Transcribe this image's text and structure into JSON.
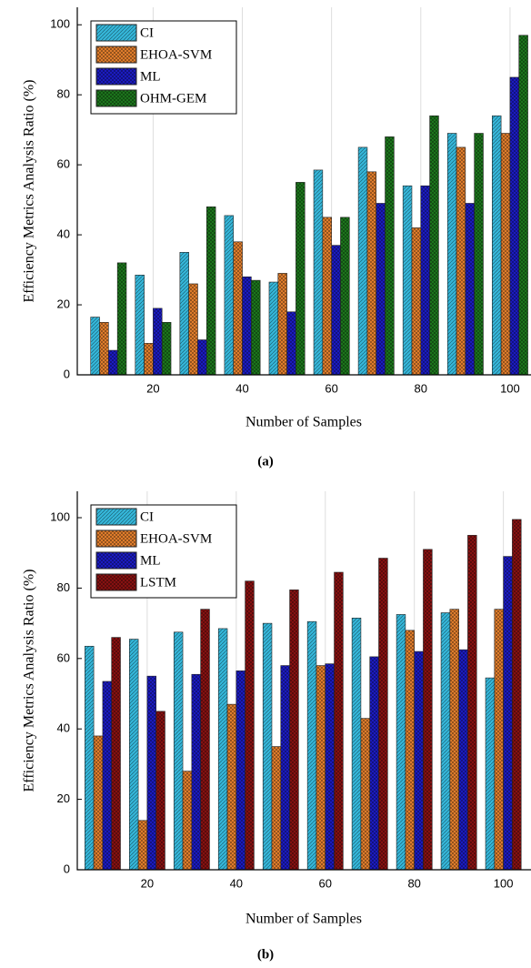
{
  "chart_data": [
    {
      "type": "bar",
      "caption": "(a)",
      "x_label": "Number of Samples",
      "y_label": "Efficiency Metrics Analysis Ratio (%)",
      "x": [
        10,
        20,
        30,
        40,
        50,
        60,
        70,
        80,
        90,
        100
      ],
      "xlim": [
        3,
        104.5
      ],
      "xticks": [
        20,
        40,
        60,
        80,
        100
      ],
      "ylim": [
        0,
        105
      ],
      "yticks": [
        0,
        20,
        40,
        60,
        80,
        100
      ],
      "grid": true,
      "legend": "upper left",
      "series": [
        {
          "name": "CI",
          "color": "#35b6d9",
          "values": [
            16.5,
            28.5,
            35,
            45.5,
            26.5,
            58.5,
            65,
            54,
            69,
            74
          ]
        },
        {
          "name": "EHOA-SVM",
          "color": "#e8822e",
          "values": [
            15,
            9,
            26,
            38,
            29,
            45,
            58,
            42,
            65,
            69
          ]
        },
        {
          "name": "ML",
          "color": "#1c1cc8",
          "values": [
            7,
            19,
            10,
            28,
            18,
            37,
            49,
            54,
            49,
            85
          ]
        },
        {
          "name": "OHM-GEM",
          "color": "#1d7a1d",
          "values": [
            32,
            15,
            48,
            27,
            55,
            45,
            68,
            74,
            69,
            97
          ]
        }
      ]
    },
    {
      "type": "bar",
      "caption": "(b)",
      "x_label": "Number of Samples",
      "y_label": "Efficiency Metrics Analysis Ratio (%)",
      "x": [
        10,
        20,
        30,
        40,
        50,
        60,
        70,
        80,
        90,
        100
      ],
      "xlim": [
        4.3,
        106
      ],
      "xticks": [
        20,
        40,
        60,
        80,
        100
      ],
      "ylim": [
        0,
        107.5
      ],
      "yticks": [
        0,
        20,
        40,
        60,
        80,
        100
      ],
      "grid": true,
      "legend": "upper left",
      "series": [
        {
          "name": "CI",
          "color": "#35b6d9",
          "values": [
            63.5,
            65.5,
            67.5,
            68.5,
            70,
            70.5,
            71.5,
            72.5,
            73,
            54.5
          ]
        },
        {
          "name": "EHOA-SVM",
          "color": "#e8822e",
          "values": [
            38,
            14,
            28,
            47,
            35,
            58,
            43,
            68,
            74,
            74
          ]
        },
        {
          "name": "ML",
          "color": "#1c1cc8",
          "values": [
            53.5,
            55,
            55.5,
            56.5,
            58,
            58.5,
            60.5,
            62,
            62.5,
            89
          ]
        },
        {
          "name": "LSTM",
          "color": "#8b1212",
          "values": [
            66,
            45,
            74,
            82,
            79.5,
            84.5,
            88.5,
            91,
            95,
            99.5
          ]
        }
      ]
    }
  ]
}
